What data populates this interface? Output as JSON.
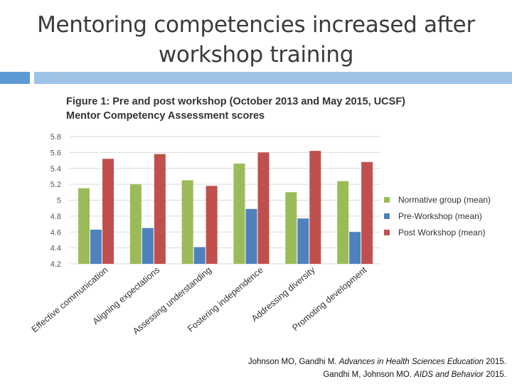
{
  "slide": {
    "title_line1": "Mentoring competencies increased after",
    "title_line2": "workshop training",
    "accent_colors": [
      "#5b9bd5",
      "#9dc3e6"
    ]
  },
  "citation": {
    "line1_authors": "Johnson MO, Gandhi M.",
    "line1_journal": "Advances in Health Sciences Education",
    "line1_year": "2015.",
    "line2_authors": "Gandhi M, Johnson MO.",
    "line2_journal": "AIDS and Behavior",
    "line2_year": "2015."
  },
  "chart_data": {
    "type": "bar",
    "title_line1": "Figure 1: Pre and post workshop (October 2013 and May 2015, UCSF)",
    "title_line2": "Mentor Competency Assessment scores",
    "categories": [
      "Effective communication",
      "Aligning expectations",
      "Assessing understanding",
      "Fostering independence",
      "Addressing diversity",
      "Promoting development"
    ],
    "series": [
      {
        "name": "Normative group (mean)",
        "color": "#9bbb59",
        "values": [
          5.15,
          5.2,
          5.25,
          5.46,
          5.1,
          5.24
        ]
      },
      {
        "name": "Pre-Workshop (mean)",
        "color": "#4f81bd",
        "values": [
          4.63,
          4.65,
          4.41,
          4.89,
          4.77,
          4.6
        ]
      },
      {
        "name": "Post Workshop (mean)",
        "color": "#c0504d",
        "values": [
          5.52,
          5.58,
          5.18,
          5.6,
          5.62,
          5.48
        ]
      }
    ],
    "ylim": [
      4.2,
      5.8
    ],
    "yticks": [
      "4.2",
      "4.4",
      "4.6",
      "4.8",
      "5",
      "5.2",
      "5.4",
      "5.6",
      "5.8"
    ],
    "grid": true,
    "legend_position": "right"
  }
}
